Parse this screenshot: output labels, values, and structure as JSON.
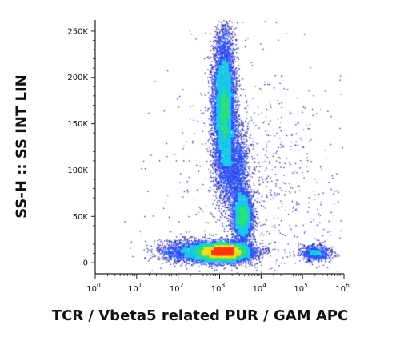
{
  "chart_data": {
    "type": "scatter",
    "style": "flow-cytometry pseudocolor dot plot",
    "title": "",
    "xlabel": "TCR / Vbeta5 related PUR / GAM APC",
    "ylabel": "SS-H :: SS INT LIN",
    "x_scale": "log",
    "xlim": [
      1,
      1000000
    ],
    "ylim": [
      -12000,
      262000
    ],
    "x_ticks": [
      {
        "value": 1,
        "base": "10",
        "exp": "0"
      },
      {
        "value": 10,
        "base": "10",
        "exp": "1"
      },
      {
        "value": 100,
        "base": "10",
        "exp": "2"
      },
      {
        "value": 1000,
        "base": "10",
        "exp": "3"
      },
      {
        "value": 10000,
        "base": "10",
        "exp": "4"
      },
      {
        "value": 100000,
        "base": "10",
        "exp": "5"
      },
      {
        "value": 1000000,
        "base": "10",
        "exp": "6"
      }
    ],
    "y_ticks": [
      {
        "value": 0,
        "label": "0"
      },
      {
        "value": 50000,
        "label": "50K"
      },
      {
        "value": 100000,
        "label": "100K"
      },
      {
        "value": 150000,
        "label": "150K"
      },
      {
        "value": 200000,
        "label": "200K"
      },
      {
        "value": 250000,
        "label": "250K"
      }
    ],
    "grid": false,
    "color_scale": [
      "#1a1aa8",
      "#2a4df0",
      "#19c8e6",
      "#2ee07a",
      "#f0e020",
      "#ff3a10"
    ],
    "populations": [
      {
        "x_log_center": 3.05,
        "y_center": 12000,
        "x_log_spread": 0.35,
        "y_spread": 5000,
        "relative_count": 0.36
      },
      {
        "x_log_center": 3.1,
        "y_center": 165000,
        "x_log_spread": 0.13,
        "y_spread": 40000,
        "relative_count": 0.34
      },
      {
        "x_log_center": 3.55,
        "y_center": 50000,
        "x_log_spread": 0.12,
        "y_spread": 14000,
        "relative_count": 0.12
      },
      {
        "x_log_center": 3.4,
        "y_center": 100000,
        "x_log_spread": 0.15,
        "y_spread": 25000,
        "relative_count": 0.07
      },
      {
        "x_log_center": 5.3,
        "y_center": 11000,
        "x_log_spread": 0.18,
        "y_spread": 4500,
        "relative_count": 0.03
      },
      {
        "x_log_center": 2.2,
        "y_center": 12000,
        "x_log_spread": 0.35,
        "y_spread": 6000,
        "relative_count": 0.05
      },
      {
        "x_log_center": 4.0,
        "y_center": 80000,
        "x_log_spread": 1.2,
        "y_spread": 70000,
        "relative_count": 0.03
      }
    ]
  }
}
